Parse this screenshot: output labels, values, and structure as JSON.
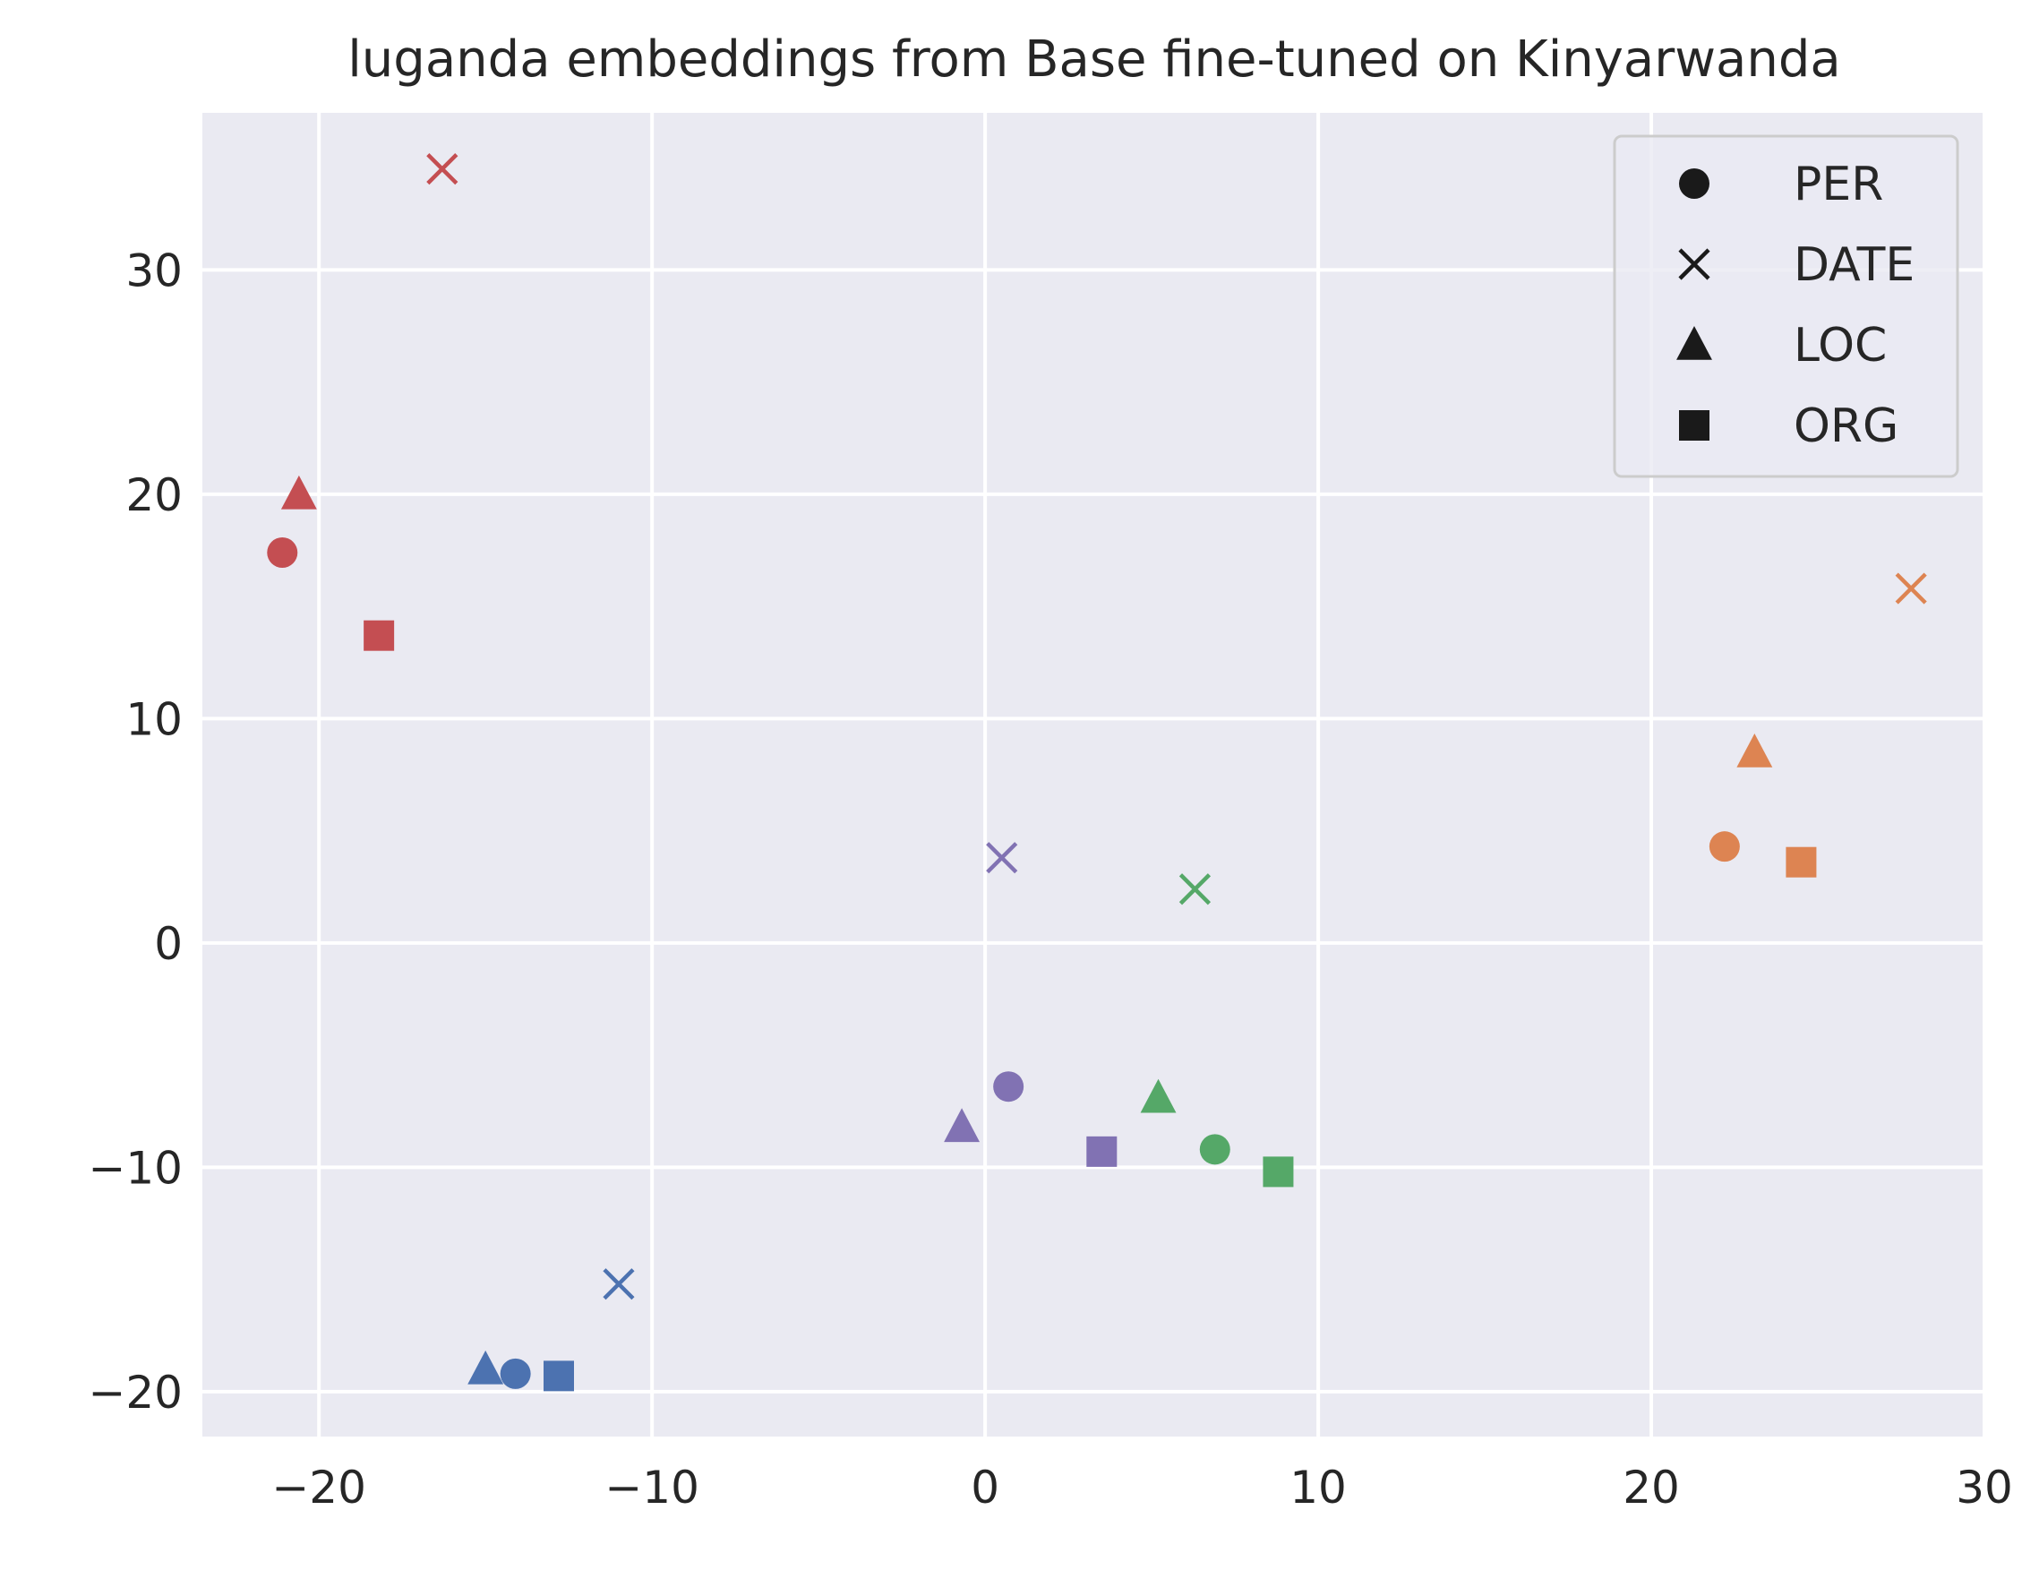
{
  "chart_data": {
    "type": "scatter",
    "title": "luganda embeddings from Base fine-tuned on Kinyarwanda",
    "xlabel": "",
    "ylabel": "",
    "xlim": [
      -23.5,
      30
    ],
    "ylim": [
      -22,
      37
    ],
    "x_ticks": [
      -20,
      -10,
      0,
      10,
      20,
      30
    ],
    "x_tick_labels": [
      "−20",
      "−10",
      "0",
      "10",
      "20",
      "30"
    ],
    "y_ticks": [
      -20,
      -10,
      0,
      10,
      20,
      30
    ],
    "y_tick_labels": [
      "−20",
      "−10",
      "0",
      "10",
      "20",
      "30"
    ],
    "grid": true,
    "background": "#eaeaf2",
    "legend": {
      "placement": "top-right",
      "entries": [
        {
          "label": "PER",
          "marker": "circle"
        },
        {
          "label": "DATE",
          "marker": "x"
        },
        {
          "label": "LOC",
          "marker": "triangle"
        },
        {
          "label": "ORG",
          "marker": "square"
        }
      ]
    },
    "groups": [
      {
        "color": "#c44e52",
        "points": [
          {
            "type": "PER",
            "x": -21.1,
            "y": 17.4
          },
          {
            "type": "DATE",
            "x": -16.3,
            "y": 34.5
          },
          {
            "type": "LOC",
            "x": -20.6,
            "y": 20.0
          },
          {
            "type": "ORG",
            "x": -18.2,
            "y": 13.7
          }
        ]
      },
      {
        "color": "#dd8452",
        "points": [
          {
            "type": "PER",
            "x": 22.2,
            "y": 4.3
          },
          {
            "type": "DATE",
            "x": 27.8,
            "y": 15.8
          },
          {
            "type": "LOC",
            "x": 23.1,
            "y": 8.5
          },
          {
            "type": "ORG",
            "x": 24.5,
            "y": 3.6
          }
        ]
      },
      {
        "color": "#8172b3",
        "points": [
          {
            "type": "PER",
            "x": 0.7,
            "y": -6.4
          },
          {
            "type": "DATE",
            "x": 0.5,
            "y": 3.8
          },
          {
            "type": "LOC",
            "x": -0.7,
            "y": -8.2
          },
          {
            "type": "ORG",
            "x": 3.5,
            "y": -9.3
          }
        ]
      },
      {
        "color": "#55a868",
        "points": [
          {
            "type": "PER",
            "x": 6.9,
            "y": -9.2
          },
          {
            "type": "DATE",
            "x": 6.3,
            "y": 2.4
          },
          {
            "type": "LOC",
            "x": 5.2,
            "y": -6.9
          },
          {
            "type": "ORG",
            "x": 8.8,
            "y": -10.2
          }
        ]
      },
      {
        "color": "#4c72b0",
        "points": [
          {
            "type": "PER",
            "x": -14.1,
            "y": -19.2
          },
          {
            "type": "DATE",
            "x": -11.0,
            "y": -15.2
          },
          {
            "type": "LOC",
            "x": -15.0,
            "y": -19.0
          },
          {
            "type": "ORG",
            "x": -12.8,
            "y": -19.3
          }
        ]
      }
    ]
  }
}
